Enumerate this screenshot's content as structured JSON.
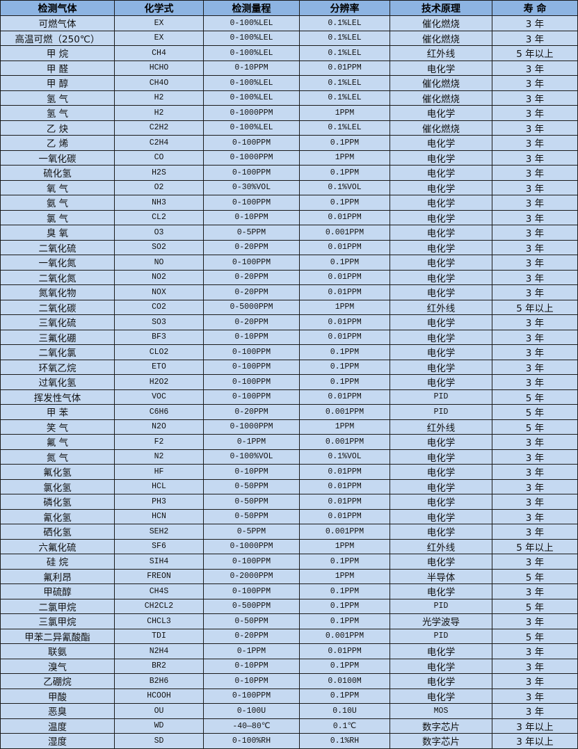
{
  "colors": {
    "header_bg": "#8db4e2",
    "row_bg": "#c5d9f1",
    "border": "#1a1a1a"
  },
  "headers": [
    "检测气体",
    "化学式",
    "检测量程",
    "分辨率",
    "技术原理",
    "寿 命"
  ],
  "rows": [
    [
      "可燃气体",
      "EX",
      "0-100%LEL",
      "0.1%LEL",
      "催化燃烧",
      "3 年"
    ],
    [
      "高温可燃（250℃）",
      "EX",
      "0-100%LEL",
      "0.1%LEL",
      "催化燃烧",
      "3 年"
    ],
    [
      "甲 烷",
      "CH4",
      "0-100%LEL",
      "0.1%LEL",
      "红外线",
      "5 年以上"
    ],
    [
      "甲 醛",
      "HCHO",
      "0-10PPM",
      "0.01PPM",
      "电化学",
      "3 年"
    ],
    [
      "甲 醇",
      "CH4O",
      "0-100%LEL",
      "0.1%LEL",
      "催化燃烧",
      "3 年"
    ],
    [
      "氢 气",
      "H2",
      "0-100%LEL",
      "0.1%LEL",
      "催化燃烧",
      "3 年"
    ],
    [
      "氢 气",
      "H2",
      "0-1000PPM",
      "1PPM",
      "电化学",
      "3 年"
    ],
    [
      "乙 炔",
      "C2H2",
      "0-100%LEL",
      "0.1%LEL",
      "催化燃烧",
      "3 年"
    ],
    [
      "乙 烯",
      "C2H4",
      "0-100PPM",
      "0.1PPM",
      "电化学",
      "3 年"
    ],
    [
      "一氧化碳",
      "CO",
      "0-1000PPM",
      "1PPM",
      "电化学",
      "3 年"
    ],
    [
      "硫化氢",
      "H2S",
      "0-100PPM",
      "0.1PPM",
      "电化学",
      "3 年"
    ],
    [
      "氧 气",
      "O2",
      "0-30%VOL",
      "0.1%VOL",
      "电化学",
      "3 年"
    ],
    [
      "氨 气",
      "NH3",
      "0-100PPM",
      "0.1PPM",
      "电化学",
      "3 年"
    ],
    [
      "氯 气",
      "CL2",
      "0-10PPM",
      "0.01PPM",
      "电化学",
      "3 年"
    ],
    [
      "臭 氧",
      "O3",
      "0-5PPM",
      "0.001PPM",
      "电化学",
      "3 年"
    ],
    [
      "二氧化硫",
      "SO2",
      "0-20PPM",
      "0.01PPM",
      "电化学",
      "3 年"
    ],
    [
      "一氧化氮",
      "NO",
      "0-100PPM",
      "0.1PPM",
      "电化学",
      "3 年"
    ],
    [
      "二氧化氮",
      "NO2",
      "0-20PPM",
      "0.01PPM",
      "电化学",
      "3 年"
    ],
    [
      "氮氧化物",
      "NOX",
      "0-20PPM",
      "0.01PPM",
      "电化学",
      "3 年"
    ],
    [
      "二氧化碳",
      "CO2",
      "0-5000PPM",
      "1PPM",
      "红外线",
      "5 年以上"
    ],
    [
      "三氧化硫",
      "SO3",
      "0-20PPM",
      "0.01PPM",
      "电化学",
      "3 年"
    ],
    [
      "三氟化硼",
      "BF3",
      "0-10PPM",
      "0.01PPM",
      "电化学",
      "3 年"
    ],
    [
      "二氧化氯",
      "CLO2",
      "0-100PPM",
      "0.1PPM",
      "电化学",
      "3 年"
    ],
    [
      "环氧乙烷",
      "ETO",
      "0-100PPM",
      "0.1PPM",
      "电化学",
      "3 年"
    ],
    [
      "过氧化氢",
      "H2O2",
      "0-100PPM",
      "0.1PPM",
      "电化学",
      "3 年"
    ],
    [
      "挥发性气体",
      "VOC",
      "0-100PPM",
      "0.01PPM",
      "PID",
      "5 年"
    ],
    [
      "甲 苯",
      "C6H6",
      "0-20PPM",
      "0.001PPM",
      "PID",
      "5 年"
    ],
    [
      "笑 气",
      "N2O",
      "0-1000PPM",
      "1PPM",
      "红外线",
      "5 年"
    ],
    [
      "氟 气",
      "F2",
      "0-1PPM",
      "0.001PPM",
      "电化学",
      "3 年"
    ],
    [
      "氮 气",
      "N2",
      "0-100%VOL",
      "0.1%VOL",
      "电化学",
      "3 年"
    ],
    [
      "氟化氢",
      "HF",
      "0-10PPM",
      "0.01PPM",
      "电化学",
      "3 年"
    ],
    [
      "氯化氢",
      "HCL",
      "0-50PPM",
      "0.01PPM",
      "电化学",
      "3 年"
    ],
    [
      "磷化氢",
      "PH3",
      "0-50PPM",
      "0.01PPM",
      "电化学",
      "3 年"
    ],
    [
      "氰化氢",
      "HCN",
      "0-50PPM",
      "0.01PPM",
      "电化学",
      "3 年"
    ],
    [
      "硒化氢",
      "SEH2",
      "0-5PPM",
      "0.001PPM",
      "电化学",
      "3 年"
    ],
    [
      "六氟化硫",
      "SF6",
      "0-1000PPM",
      "1PPM",
      "红外线",
      "5 年以上"
    ],
    [
      "硅 烷",
      "SIH4",
      "0-100PPM",
      "0.1PPM",
      "电化学",
      "3 年"
    ],
    [
      "氟利昂",
      "FREON",
      "0-2000PPM",
      "1PPM",
      "半导体",
      "5 年"
    ],
    [
      "甲硫醇",
      "CH4S",
      "0-100PPM",
      "0.1PPM",
      "电化学",
      "3 年"
    ],
    [
      "二氯甲烷",
      "CH2CL2",
      "0-500PPM",
      "0.1PPM",
      "PID",
      "5 年"
    ],
    [
      "三氯甲烷",
      "CHCL3",
      "0-50PPM",
      "0.1PPM",
      "光学波导",
      "3 年"
    ],
    [
      "甲苯二异氰酸酯",
      "TDI",
      "0-20PPM",
      "0.001PPM",
      "PID",
      "5 年"
    ],
    [
      "联氨",
      "N2H4",
      "0-1PPM",
      "0.01PPM",
      "电化学",
      "3 年"
    ],
    [
      "溴气",
      "BR2",
      "0-10PPM",
      "0.1PPM",
      "电化学",
      "3 年"
    ],
    [
      "乙硼烷",
      "B2H6",
      "0-10PPM",
      "0.0100M",
      "电化学",
      "3 年"
    ],
    [
      "甲酸",
      "HCOOH",
      "0-100PPM",
      "0.1PPM",
      "电化学",
      "3 年"
    ],
    [
      "恶臭",
      "OU",
      "0-100U",
      "0.10U",
      "MOS",
      "3 年"
    ],
    [
      "温度",
      "WD",
      "-40—80℃",
      "0.1℃",
      "数字芯片",
      "3 年以上"
    ],
    [
      "湿度",
      "SD",
      "0-100%RH",
      "0.1%RH",
      "数字芯片",
      "3 年以上"
    ]
  ]
}
